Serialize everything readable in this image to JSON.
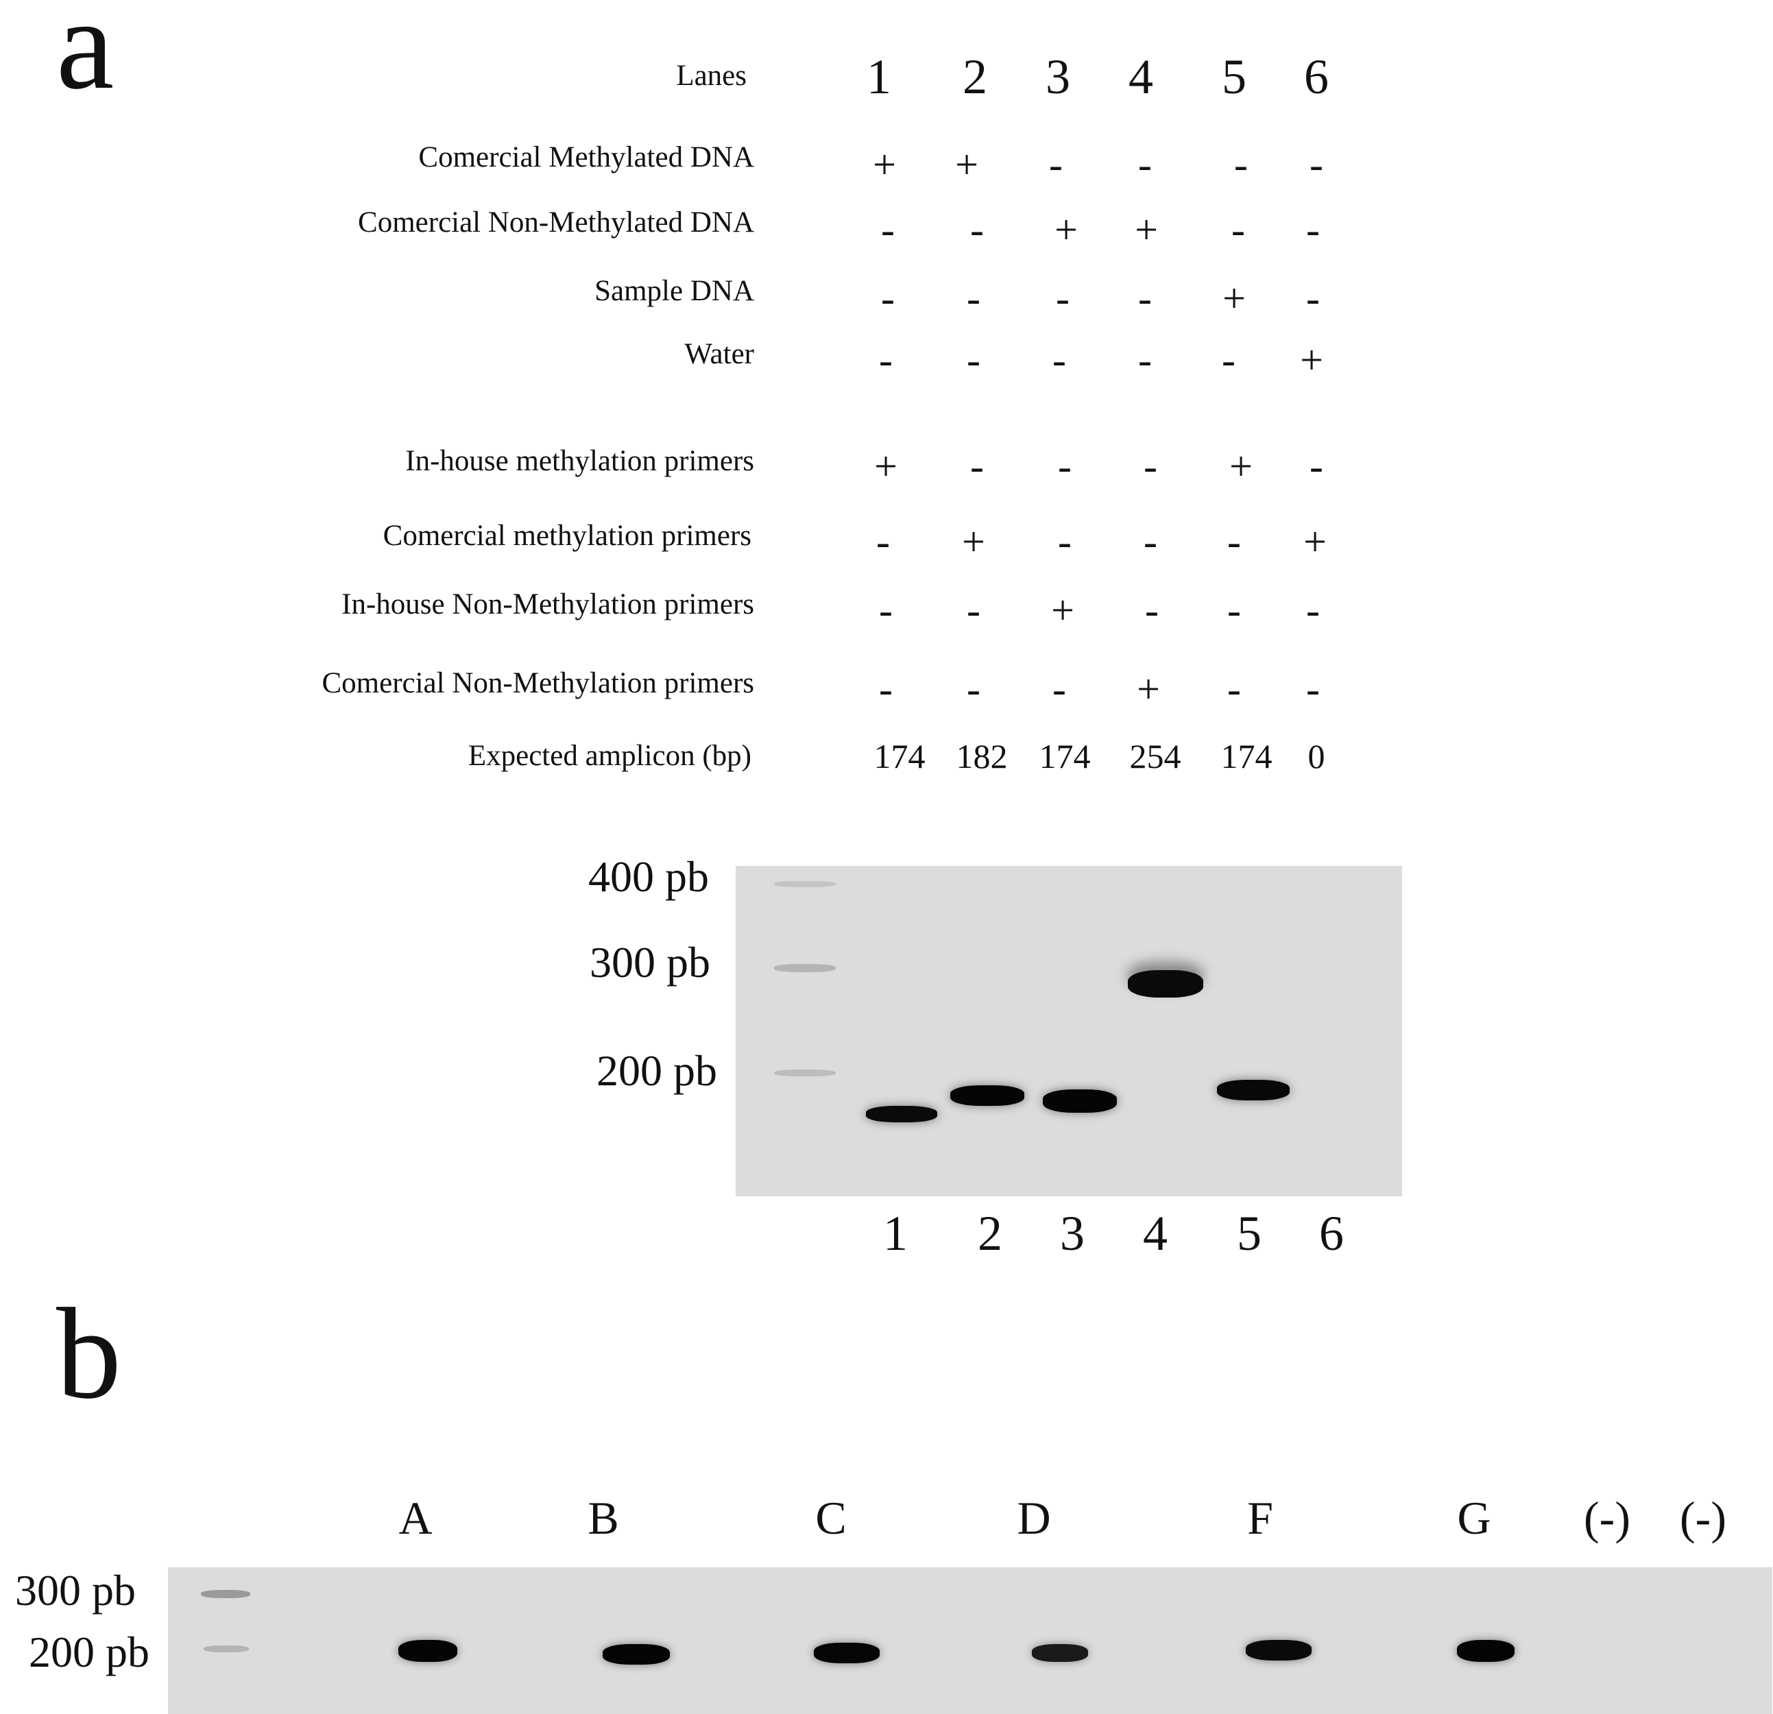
{
  "panel_a": {
    "label": "a",
    "header": {
      "label": "Lanes",
      "lanes": [
        "1",
        "2",
        "3",
        "4",
        "5",
        "6"
      ]
    },
    "rows": [
      {
        "label": "Comercial Methylated DNA",
        "values": [
          "+",
          "+",
          "-",
          "-",
          "-",
          "-"
        ]
      },
      {
        "label": "Comercial Non-Methylated DNA",
        "values": [
          "-",
          "-",
          "+",
          "+",
          "-",
          "-"
        ]
      },
      {
        "label": "Sample DNA",
        "values": [
          "-",
          "-",
          "-",
          "-",
          "+",
          "-"
        ]
      },
      {
        "label": "Water",
        "values": [
          "-",
          "-",
          "-",
          "-",
          "-",
          "+"
        ]
      },
      {
        "label": "In-house methylation primers",
        "values": [
          "+",
          "-",
          "-",
          "-",
          "+",
          "-"
        ]
      },
      {
        "label": "Comercial methylation primers",
        "values": [
          "-",
          "+",
          "-",
          "-",
          "-",
          "+"
        ]
      },
      {
        "label": "In-house Non-Methylation primers",
        "values": [
          "-",
          "-",
          "+",
          "-",
          "-",
          "-"
        ]
      },
      {
        "label": "Comercial Non-Methylation primers",
        "values": [
          "-",
          "-",
          "-",
          "+",
          "-",
          "-"
        ]
      },
      {
        "label": "Expected amplicon (bp)",
        "values": [
          "174",
          "182",
          "174",
          "254",
          "174",
          "0"
        ]
      }
    ],
    "gel": {
      "markers": [
        "400 pb",
        "300 pb",
        "200 pb"
      ],
      "lane_labels": [
        "1",
        "2",
        "3",
        "4",
        "5",
        "6"
      ],
      "band_sizes_bp": [
        174,
        182,
        174,
        254,
        174,
        0
      ]
    }
  },
  "panel_b": {
    "label": "b",
    "lane_labels": [
      "A",
      "B",
      "C",
      "D",
      "F",
      "G",
      "(-)",
      "(-)"
    ],
    "markers": [
      "300 pb",
      "200 pb"
    ],
    "bands_present": [
      true,
      true,
      true,
      true,
      true,
      true,
      false,
      false
    ]
  }
}
